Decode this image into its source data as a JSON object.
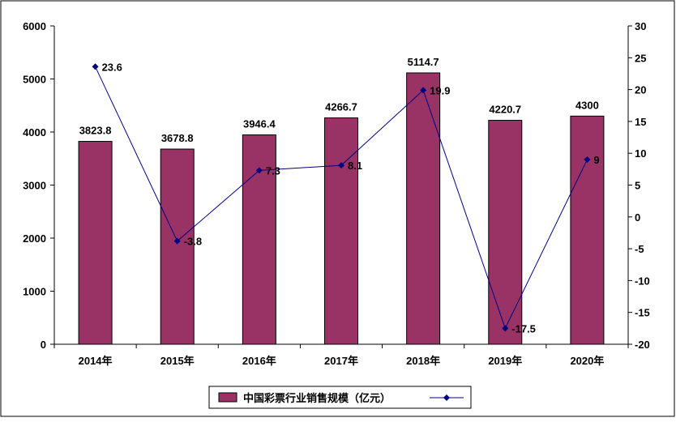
{
  "chart_data": {
    "type": "bar",
    "categories": [
      "2014年",
      "2015年",
      "2016年",
      "2017年",
      "2018年",
      "2019年",
      "2020年"
    ],
    "series": [
      {
        "name": "中国彩票行业销售规模（亿元）",
        "type": "bar",
        "axis": "left",
        "values": [
          3823.8,
          3678.8,
          3946.4,
          4266.7,
          5114.7,
          4220.7,
          4300
        ],
        "labels": [
          "3823.8",
          "3678.8",
          "3946.4",
          "4266.7",
          "5114.7",
          "4220.7",
          "4300"
        ]
      },
      {
        "name": "",
        "type": "line",
        "axis": "right",
        "values": [
          23.6,
          -3.8,
          7.3,
          8.1,
          19.9,
          -17.5,
          9
        ],
        "labels": [
          "23.6",
          "-3.8",
          "7.3",
          "8.1",
          "19.9",
          "-17.5",
          "9"
        ]
      }
    ],
    "ylim": [
      0,
      6000
    ],
    "yticks": [
      "0",
      "1000",
      "2000",
      "3000",
      "4000",
      "5000",
      "6000"
    ],
    "y2lim": [
      -20,
      30
    ],
    "y2ticks": [
      "-20",
      "-15",
      "-10",
      "-5",
      "0",
      "5",
      "10",
      "15",
      "20",
      "25",
      "30"
    ],
    "grid": false,
    "legend": "bottom",
    "colors": {
      "bar": "#993366",
      "line": "#000080"
    }
  }
}
